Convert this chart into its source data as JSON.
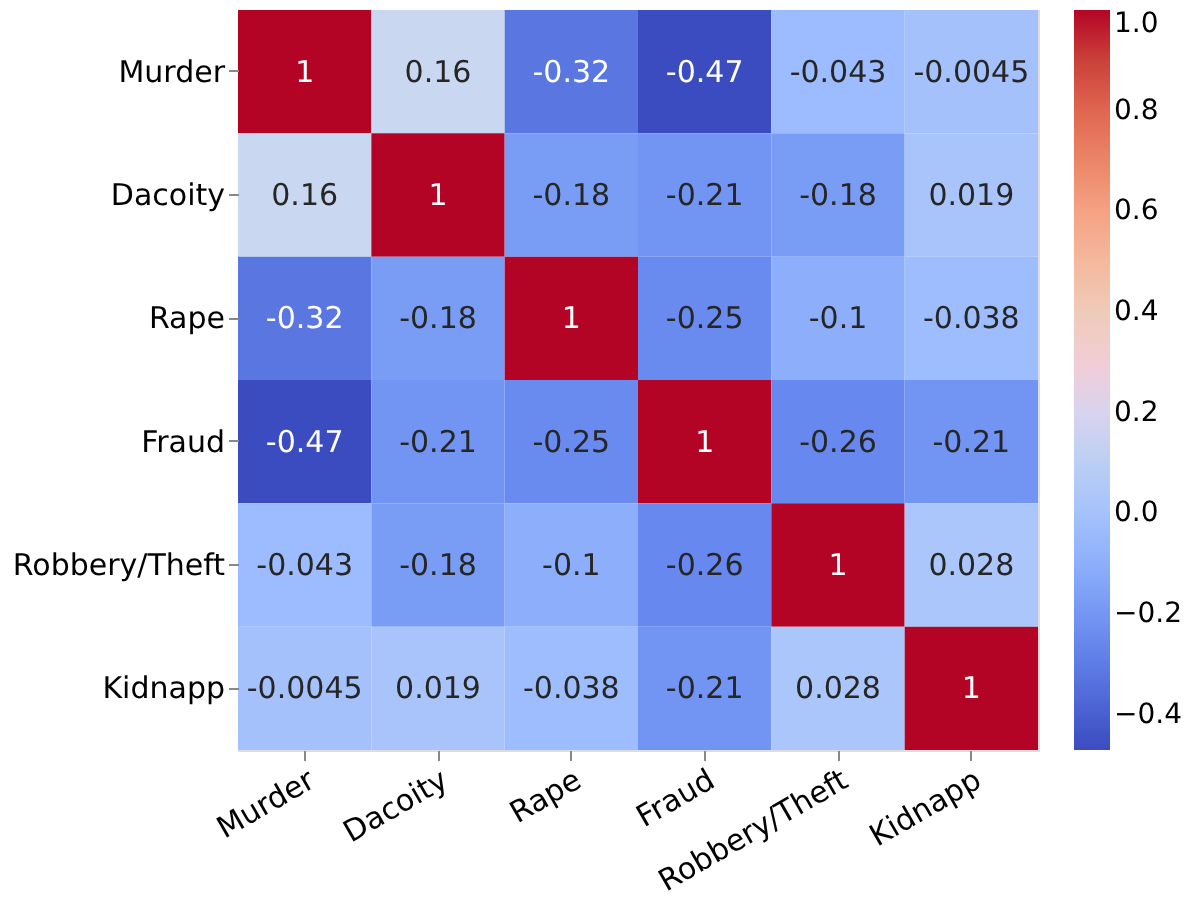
{
  "chart_data": {
    "type": "heatmap",
    "categories": [
      "Murder",
      "Dacoity",
      "Rape",
      "Fraud",
      "Robbery/Theft",
      "Kidnapp"
    ],
    "y_categories": [
      "Murder",
      "Dacoity",
      "Rape",
      "Fraud",
      "Robbery/Theft",
      "Kidnapp"
    ],
    "cells": [
      [
        1,
        0.16,
        -0.32,
        -0.47,
        -0.043,
        -0.0045
      ],
      [
        0.16,
        1,
        -0.18,
        -0.21,
        -0.18,
        0.019
      ],
      [
        -0.32,
        -0.18,
        1,
        -0.25,
        -0.1,
        -0.038
      ],
      [
        -0.47,
        -0.21,
        -0.25,
        1,
        -0.26,
        -0.21
      ],
      [
        -0.043,
        -0.18,
        -0.1,
        -0.26,
        1,
        0.028
      ],
      [
        -0.0045,
        0.019,
        -0.038,
        -0.21,
        0.028,
        1
      ]
    ],
    "clim": [
      -0.47,
      1.0
    ],
    "cticks": [
      {
        "value": -0.4,
        "label": "−0.4"
      },
      {
        "value": -0.2,
        "label": "−0.2"
      },
      {
        "value": 0,
        "label": "0.0"
      },
      {
        "value": 0.2,
        "label": "0.2"
      },
      {
        "value": 0.4,
        "label": "0.4"
      },
      {
        "value": 0.6,
        "label": "0.6"
      },
      {
        "value": 0.8,
        "label": "0.8"
      },
      {
        "value": 1,
        "label": "1.0"
      }
    ],
    "data_labels": true
  }
}
